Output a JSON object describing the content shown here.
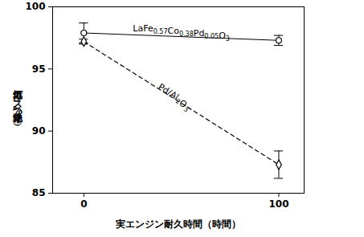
{
  "chart_data": {
    "type": "line",
    "x_label": "実エンジン耐久時間（時間）",
    "y_label": "排気ガス浄化率（%）",
    "xlim": [
      -16,
      113
    ],
    "xticks": [
      0,
      100
    ],
    "ylim": [
      85,
      100
    ],
    "yticks": [
      85,
      90,
      95,
      100
    ],
    "grid": false,
    "series": [
      {
        "name": "LaFe0.57Co0.38Pd0.05O3",
        "color": "#000000",
        "line_style": "solid",
        "marker": "circle",
        "x": [
          0,
          100
        ],
        "values": [
          97.9,
          97.3
        ],
        "errors": [
          0.8,
          0.4
        ]
      },
      {
        "name": "Pd/Al2O3",
        "color": "#000000",
        "line_style": "dashed",
        "marker": "diamond",
        "x": [
          0,
          100
        ],
        "values": [
          97.2,
          87.3
        ],
        "errors": [
          0.2,
          1.1
        ]
      }
    ]
  }
}
